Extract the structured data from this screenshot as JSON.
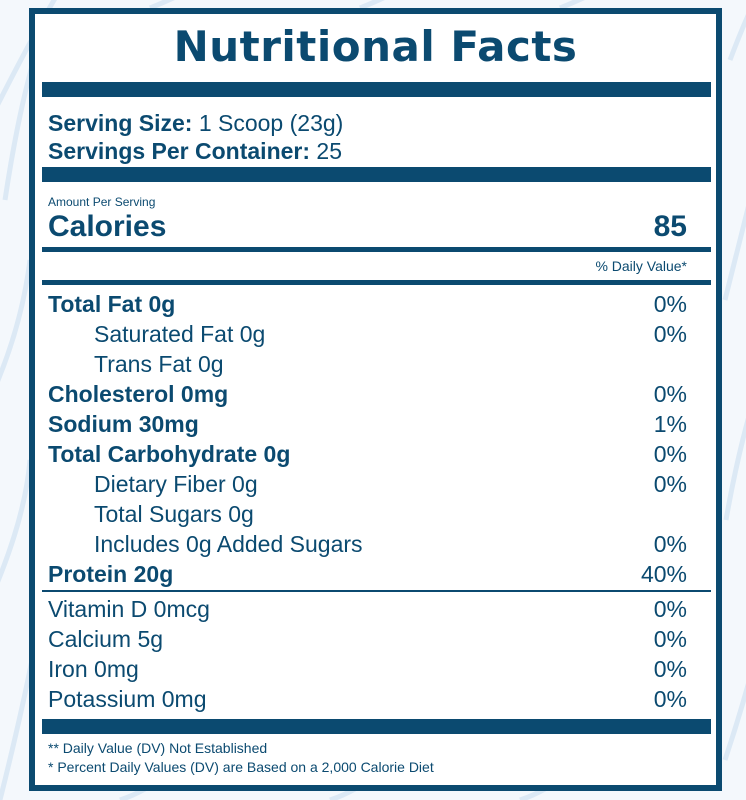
{
  "title": "Nutritional Facts",
  "serving": {
    "size_label": "Serving Size:",
    "size_value": "1 Scoop (23g)",
    "per_container_label": "Servings Per Container:",
    "per_container_value": "25"
  },
  "amount_per_serving": "Amount Per Serving",
  "calories": {
    "label": "Calories",
    "value": "85"
  },
  "daily_value_header": "% Daily Value*",
  "nutrients": [
    {
      "name": "Total Fat 0g",
      "dv": "0%",
      "bold": true,
      "indent": false
    },
    {
      "name": "Saturated Fat 0g",
      "dv": "0%",
      "bold": false,
      "indent": true
    },
    {
      "name": "Trans Fat 0g",
      "dv": "",
      "bold": false,
      "indent": true
    },
    {
      "name": "Cholesterol 0mg",
      "dv": "0%",
      "bold": true,
      "indent": false
    },
    {
      "name": "Sodium 30mg",
      "dv": "1%",
      "bold": true,
      "indent": false
    },
    {
      "name": "Total Carbohydrate 0g",
      "dv": "0%",
      "bold": true,
      "indent": false
    },
    {
      "name": "Dietary Fiber 0g",
      "dv": "0%",
      "bold": false,
      "indent": true
    },
    {
      "name": "Total Sugars 0g",
      "dv": "",
      "bold": false,
      "indent": true
    },
    {
      "name": "Includes 0g Added Sugars",
      "dv": "0%",
      "bold": false,
      "indent": true
    },
    {
      "name": "Protein 20g",
      "dv": "40%",
      "bold": true,
      "indent": false
    }
  ],
  "vitamins": [
    {
      "name": "Vitamin D 0mcg",
      "dv": "0%"
    },
    {
      "name": "Calcium 5g",
      "dv": "0%"
    },
    {
      "name": "Iron 0mg",
      "dv": "0%"
    },
    {
      "name": "Potassium 0mg",
      "dv": "0%"
    }
  ],
  "footnotes": [
    "** Daily Value (DV) Not Established",
    "* Percent Daily Values (DV) are Based on a 2,000 Calorie Diet"
  ],
  "colors": {
    "primary": "#0b4a70",
    "background": "#f4f8fc",
    "pattern": "#dce9f5"
  }
}
